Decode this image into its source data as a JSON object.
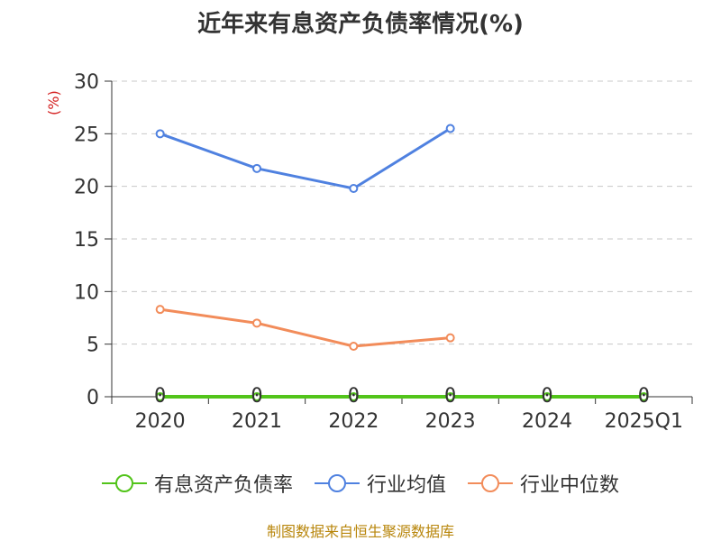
{
  "chart_data": {
    "type": "line",
    "title": "近年来有息资产负债率情况(%)",
    "ylabel": "(%)",
    "categories": [
      "2020",
      "2021",
      "2022",
      "2023",
      "2024",
      "2025Q1"
    ],
    "ylim": [
      0,
      30
    ],
    "yticks": [
      0,
      5,
      10,
      15,
      20,
      25,
      30
    ],
    "grid": true,
    "legend_position": "bottom",
    "series": [
      {
        "name": "有息资产负债率",
        "color": "#52c41a",
        "values": [
          0,
          0,
          0,
          0,
          0,
          0
        ],
        "labels": [
          "0",
          "0",
          "0",
          "0",
          "0",
          "0"
        ]
      },
      {
        "name": "行业均值",
        "color": "#4f81e0",
        "values": [
          25.0,
          21.7,
          19.8,
          25.5,
          null,
          null
        ]
      },
      {
        "name": "行业中位数",
        "color": "#f28c5a",
        "values": [
          8.3,
          7.0,
          4.8,
          5.6,
          null,
          null
        ]
      }
    ]
  },
  "source": "制图数据来自恒生聚源数据库"
}
